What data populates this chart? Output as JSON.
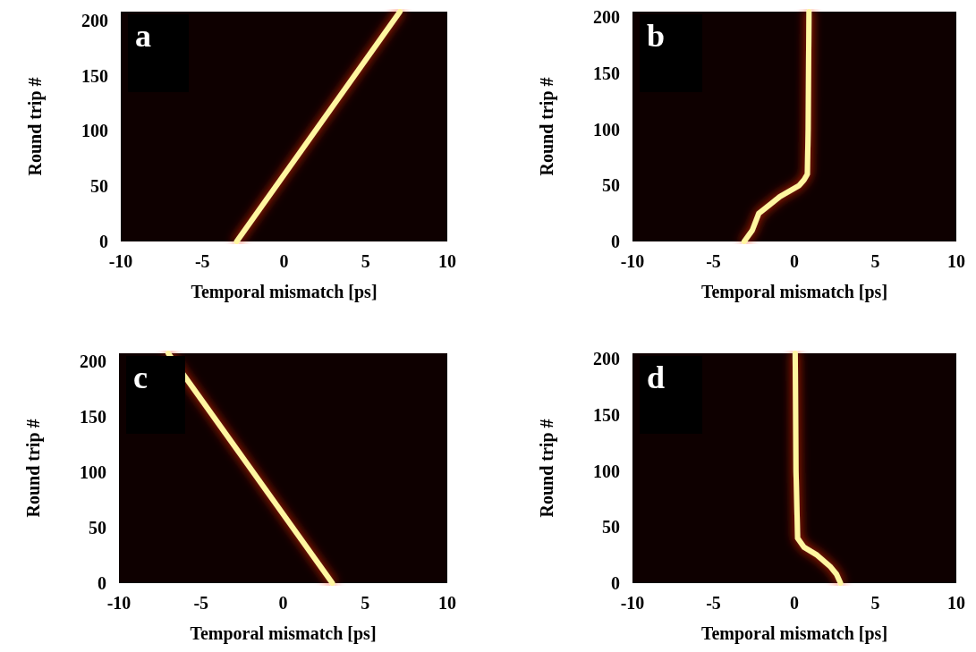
{
  "chart_data": [
    {
      "type": "line",
      "title": "a",
      "xlabel": "Temporal mismatch [ps]",
      "ylabel": "Round trip #",
      "xlim": [
        -10,
        10
      ],
      "ylim": [
        0,
        208
      ],
      "xticks": [
        -10,
        -5,
        0,
        5,
        10
      ],
      "yticks": [
        0,
        50,
        100,
        150,
        200
      ],
      "marker": "none",
      "line_style": "solid",
      "series": [
        {
          "color": "#fff6a0",
          "x": [
            -2.9,
            7.1
          ],
          "values": [
            0,
            208
          ]
        }
      ]
    },
    {
      "type": "line",
      "title": "b",
      "xlabel": "Temporal mismatch [ps]",
      "ylabel": "Round trip #",
      "xlim": [
        -10,
        10
      ],
      "ylim": [
        0,
        205
      ],
      "xticks": [
        -10,
        -5,
        0,
        5,
        10
      ],
      "yticks": [
        0,
        50,
        100,
        150,
        200
      ],
      "marker": "none",
      "line_style": "solid",
      "series": [
        {
          "color": "#fff6a0",
          "x": [
            -3.1,
            -2.6,
            -2.2,
            -1.5,
            -0.9,
            -0.3,
            0.3,
            0.6,
            0.8,
            0.85,
            0.9
          ],
          "values": [
            0,
            10,
            25,
            33,
            40,
            45,
            50,
            55,
            60,
            100,
            205
          ]
        }
      ]
    },
    {
      "type": "line",
      "title": "c",
      "xlabel": "Temporal mismatch [ps]",
      "ylabel": "Round trip #",
      "xlim": [
        -10,
        10
      ],
      "ylim": [
        0,
        207
      ],
      "xticks": [
        -10,
        -5,
        0,
        5,
        10
      ],
      "yticks": [
        0,
        50,
        100,
        150,
        200
      ],
      "marker": "none",
      "line_style": "solid",
      "series": [
        {
          "color": "#fff6a0",
          "x": [
            3.0,
            -7.0
          ],
          "values": [
            0,
            207
          ]
        }
      ]
    },
    {
      "type": "line",
      "title": "d",
      "xlabel": "Temporal mismatch [ps]",
      "ylabel": "Round trip #",
      "xlim": [
        -10,
        10
      ],
      "ylim": [
        0,
        205
      ],
      "xticks": [
        -10,
        -5,
        0,
        5,
        10
      ],
      "yticks": [
        0,
        50,
        100,
        150,
        200
      ],
      "marker": "none",
      "line_style": "solid",
      "series": [
        {
          "color": "#fff6a0",
          "x": [
            2.85,
            2.6,
            2.2,
            1.4,
            0.6,
            0.2,
            0.1,
            0.05
          ],
          "values": [
            0,
            8,
            15,
            25,
            32,
            40,
            100,
            205
          ]
        }
      ]
    }
  ]
}
